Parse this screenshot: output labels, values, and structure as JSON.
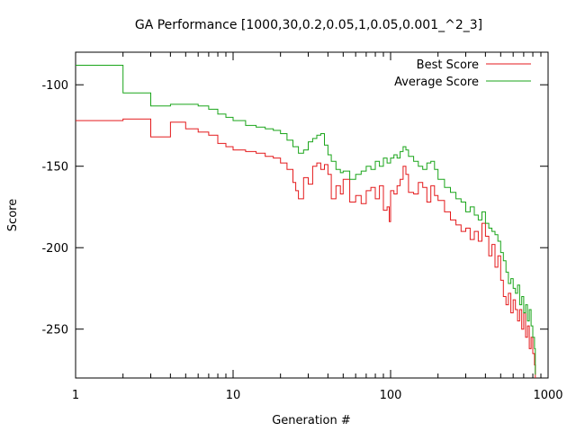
{
  "chart_data": {
    "type": "line",
    "title": "GA Performance [1000,30,0.2,0.05,1,0.05,0.001_^2_3]",
    "xlabel": "Generation #",
    "ylabel": "Score",
    "xscale": "log",
    "xlim": [
      1,
      1000
    ],
    "ylim": [
      -280,
      -80
    ],
    "xticks": [
      1,
      10,
      100,
      1000
    ],
    "xtick_labels": [
      "1",
      "10",
      "100",
      "1000"
    ],
    "yticks": [
      -100,
      -150,
      -200,
      -250
    ],
    "ytick_labels": [
      "-100",
      "-150",
      "-200",
      "-250"
    ],
    "grid": false,
    "legend_position": "top-right",
    "series": [
      {
        "name": "Best Score",
        "color": "#e41a1c",
        "step": true,
        "x": [
          1,
          2,
          3,
          4,
          5,
          6,
          7,
          8,
          9,
          10,
          12,
          14,
          16,
          18,
          20,
          22,
          24,
          25,
          26,
          28,
          30,
          32,
          34,
          36,
          38,
          40,
          42,
          45,
          48,
          50,
          55,
          60,
          65,
          70,
          75,
          80,
          85,
          90,
          95,
          98,
          100,
          105,
          110,
          115,
          120,
          125,
          130,
          140,
          150,
          160,
          170,
          180,
          190,
          200,
          220,
          240,
          260,
          280,
          300,
          320,
          340,
          360,
          380,
          400,
          420,
          440,
          460,
          480,
          500,
          520,
          540,
          560,
          580,
          600,
          620,
          640,
          660,
          680,
          700,
          720,
          740,
          760,
          780,
          800,
          820,
          830
        ],
        "values": [
          -122,
          -121,
          -132,
          -123,
          -127,
          -129,
          -131,
          -136,
          -138,
          -140,
          -141,
          -142,
          -144,
          -145,
          -148,
          -152,
          -160,
          -165,
          -170,
          -157,
          -161,
          -150,
          -148,
          -152,
          -149,
          -155,
          -170,
          -162,
          -167,
          -158,
          -172,
          -168,
          -173,
          -165,
          -163,
          -170,
          -162,
          -177,
          -175,
          -184,
          -165,
          -167,
          -162,
          -158,
          -150,
          -155,
          -166,
          -167,
          -160,
          -163,
          -172,
          -162,
          -168,
          -171,
          -178,
          -183,
          -186,
          -190,
          -188,
          -195,
          -190,
          -196,
          -185,
          -193,
          -205,
          -198,
          -212,
          -205,
          -220,
          -230,
          -235,
          -228,
          -240,
          -232,
          -238,
          -245,
          -238,
          -250,
          -240,
          -255,
          -248,
          -262,
          -255,
          -265,
          -272,
          -280
        ]
      },
      {
        "name": "Average Score",
        "color": "#1aa51a",
        "step": true,
        "x": [
          1,
          2,
          3,
          4,
          5,
          6,
          7,
          8,
          9,
          10,
          12,
          14,
          16,
          18,
          20,
          22,
          24,
          26,
          28,
          30,
          32,
          34,
          36,
          38,
          40,
          42,
          45,
          48,
          50,
          55,
          60,
          65,
          70,
          75,
          80,
          85,
          90,
          95,
          100,
          105,
          110,
          115,
          120,
          125,
          130,
          140,
          150,
          160,
          170,
          180,
          190,
          200,
          220,
          240,
          260,
          280,
          300,
          320,
          340,
          360,
          380,
          400,
          420,
          440,
          460,
          480,
          500,
          520,
          540,
          560,
          580,
          600,
          620,
          640,
          660,
          680,
          700,
          720,
          740,
          760,
          780,
          800,
          820,
          830
        ],
        "values": [
          -88,
          -105,
          -113,
          -112,
          -112,
          -113,
          -115,
          -118,
          -120,
          -122,
          -125,
          -126,
          -127,
          -128,
          -130,
          -134,
          -138,
          -142,
          -140,
          -135,
          -133,
          -131,
          -130,
          -137,
          -143,
          -147,
          -152,
          -154,
          -153,
          -158,
          -155,
          -153,
          -150,
          -152,
          -147,
          -150,
          -145,
          -148,
          -145,
          -143,
          -145,
          -141,
          -138,
          -140,
          -144,
          -147,
          -150,
          -152,
          -148,
          -147,
          -152,
          -158,
          -163,
          -166,
          -170,
          -172,
          -178,
          -175,
          -180,
          -183,
          -178,
          -185,
          -188,
          -190,
          -192,
          -196,
          -203,
          -208,
          -215,
          -222,
          -219,
          -225,
          -228,
          -223,
          -235,
          -230,
          -240,
          -235,
          -245,
          -238,
          -248,
          -255,
          -262,
          -278
        ]
      }
    ]
  }
}
